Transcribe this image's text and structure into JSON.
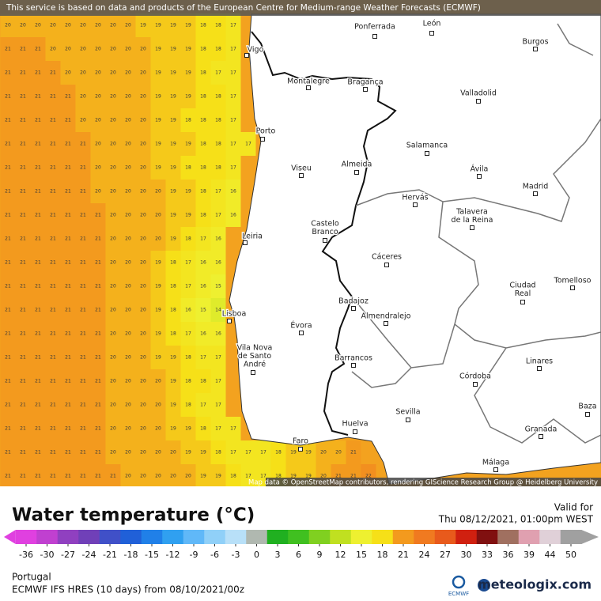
{
  "banner": "This service is based on data and products of the European Centre for Medium-range Weather Forecasts (ECMWF)",
  "attribution": "Map data © OpenStreetMap contributors, rendering GIScience Research Group @ Heidelberg University",
  "cities": [
    {
      "label": [
        "Ponferrada"
      ]
    },
    {
      "label": [
        "León"
      ]
    },
    {
      "label": [
        "Burgos"
      ]
    },
    {
      "label": [
        "Vigo"
      ]
    },
    {
      "label": [
        "Montalegre"
      ]
    },
    {
      "label": [
        "Bragança"
      ]
    },
    {
      "label": [
        "Valladolid"
      ]
    },
    {
      "label": [
        "Porto"
      ]
    },
    {
      "label": [
        "Salamanca"
      ]
    },
    {
      "label": [
        "Viseu"
      ]
    },
    {
      "label": [
        "Almeida"
      ]
    },
    {
      "label": [
        "Ávila"
      ]
    },
    {
      "label": [
        "Madrid"
      ]
    },
    {
      "label": [
        "Hervás"
      ]
    },
    {
      "label": [
        "Talavera",
        "de la Reina"
      ]
    },
    {
      "label": [
        "Castelo",
        "Branco"
      ]
    },
    {
      "label": [
        "Leiria"
      ]
    },
    {
      "label": [
        "Cáceres"
      ]
    },
    {
      "label": [
        "Ciudad",
        "Real"
      ]
    },
    {
      "label": [
        "Tomelloso"
      ]
    },
    {
      "label": [
        "Badajoz"
      ]
    },
    {
      "label": [
        "Almendralejo"
      ]
    },
    {
      "label": [
        "Lisboa"
      ]
    },
    {
      "label": [
        "Évora"
      ]
    },
    {
      "label": [
        "Vila Nova",
        "de Santo",
        "André"
      ]
    },
    {
      "label": [
        "Barrancos"
      ]
    },
    {
      "label": [
        "Linares"
      ]
    },
    {
      "label": [
        "Córdoba"
      ]
    },
    {
      "label": [
        "Sevilla"
      ]
    },
    {
      "label": [
        "Baza"
      ]
    },
    {
      "label": [
        "Huelva"
      ]
    },
    {
      "label": [
        "Granada"
      ]
    },
    {
      "label": [
        "Faro"
      ]
    },
    {
      "label": [
        "Málaga"
      ]
    }
  ],
  "sea_grid": {
    "rows": [
      [
        20,
        20,
        20,
        20,
        20,
        20,
        20,
        20,
        20,
        19,
        19,
        19,
        19,
        18,
        18,
        17
      ],
      [
        21,
        21,
        21,
        20,
        20,
        20,
        20,
        20,
        20,
        20,
        19,
        19,
        19,
        18,
        18,
        17
      ],
      [
        21,
        21,
        21,
        21,
        20,
        20,
        20,
        20,
        20,
        20,
        19,
        19,
        19,
        18,
        17,
        17
      ],
      [
        21,
        21,
        21,
        21,
        21,
        20,
        20,
        20,
        20,
        20,
        19,
        19,
        19,
        18,
        18,
        17
      ],
      [
        21,
        21,
        21,
        21,
        21,
        20,
        20,
        20,
        20,
        20,
        19,
        19,
        18,
        18,
        18,
        17
      ],
      [
        21,
        21,
        21,
        21,
        21,
        21,
        20,
        20,
        20,
        20,
        19,
        19,
        19,
        18,
        18,
        17,
        17
      ],
      [
        21,
        21,
        21,
        21,
        21,
        21,
        20,
        20,
        20,
        20,
        19,
        19,
        18,
        18,
        18,
        17
      ],
      [
        21,
        21,
        21,
        21,
        21,
        21,
        20,
        20,
        20,
        20,
        20,
        19,
        19,
        18,
        17,
        16
      ],
      [
        21,
        21,
        21,
        21,
        21,
        21,
        21,
        20,
        20,
        20,
        20,
        19,
        19,
        18,
        17,
        16
      ],
      [
        21,
        21,
        21,
        21,
        21,
        21,
        21,
        20,
        20,
        20,
        20,
        19,
        18,
        17,
        16
      ],
      [
        21,
        21,
        21,
        21,
        21,
        21,
        21,
        20,
        20,
        20,
        19,
        18,
        17,
        16,
        16
      ],
      [
        21,
        21,
        21,
        21,
        21,
        21,
        21,
        20,
        20,
        20,
        19,
        18,
        17,
        16,
        15
      ],
      [
        21,
        21,
        21,
        21,
        21,
        21,
        21,
        20,
        20,
        20,
        19,
        18,
        16,
        15,
        14
      ],
      [
        21,
        21,
        21,
        21,
        21,
        21,
        21,
        20,
        20,
        20,
        19,
        18,
        17,
        16,
        16
      ],
      [
        21,
        21,
        21,
        21,
        21,
        21,
        21,
        20,
        20,
        20,
        19,
        19,
        18,
        17,
        17
      ],
      [
        21,
        21,
        21,
        21,
        21,
        21,
        21,
        20,
        20,
        20,
        20,
        19,
        18,
        18,
        17
      ],
      [
        21,
        21,
        21,
        21,
        21,
        21,
        21,
        20,
        20,
        20,
        20,
        19,
        18,
        17,
        17
      ],
      [
        21,
        21,
        21,
        21,
        21,
        21,
        21,
        20,
        20,
        20,
        20,
        19,
        19,
        18,
        17,
        17
      ],
      [
        21,
        21,
        21,
        21,
        21,
        21,
        21,
        20,
        20,
        20,
        20,
        20,
        19,
        19,
        18,
        17,
        17,
        17,
        18,
        19,
        19,
        20,
        20,
        21
      ],
      [
        21,
        21,
        21,
        21,
        21,
        21,
        21,
        21,
        20,
        20,
        20,
        20,
        20,
        19,
        19,
        18,
        17,
        17,
        18,
        19,
        19,
        20,
        21,
        21,
        22
      ]
    ]
  },
  "legend": {
    "title": "Water temperature (°C)",
    "valid_label": "Valid for",
    "valid_time": "Thu 08/12/2021, 01:00pm WEST",
    "colorbar": {
      "ticks": [
        -36,
        -30,
        -27,
        -24,
        -21,
        -18,
        -15,
        -12,
        -9,
        -6,
        -3,
        0,
        3,
        6,
        9,
        12,
        15,
        18,
        21,
        24,
        27,
        30,
        33,
        36,
        39,
        44,
        50
      ],
      "colors": [
        "#e040e0",
        "#c040d0",
        "#9040c0",
        "#7040b8",
        "#4050c8",
        "#2060d8",
        "#2080e8",
        "#30a0f0",
        "#60b8f8",
        "#90d0f8",
        "#b8e0f8",
        "#b0b8b0",
        "#20b020",
        "#40c020",
        "#80d020",
        "#c0e020",
        "#eef030",
        "#f6e018",
        "#f39a1e",
        "#f07a20",
        "#e85a1c",
        "#d02010",
        "#801010",
        "#a07060",
        "#e0a0b0",
        "#e0d0d8",
        "#a0a0a0"
      ]
    },
    "region": "Portugal",
    "model": "ECMWF IFS HRES (10 days) from 08/10/2021/00z",
    "logo_text": "ECMWF",
    "brand": "meteologix.com"
  }
}
